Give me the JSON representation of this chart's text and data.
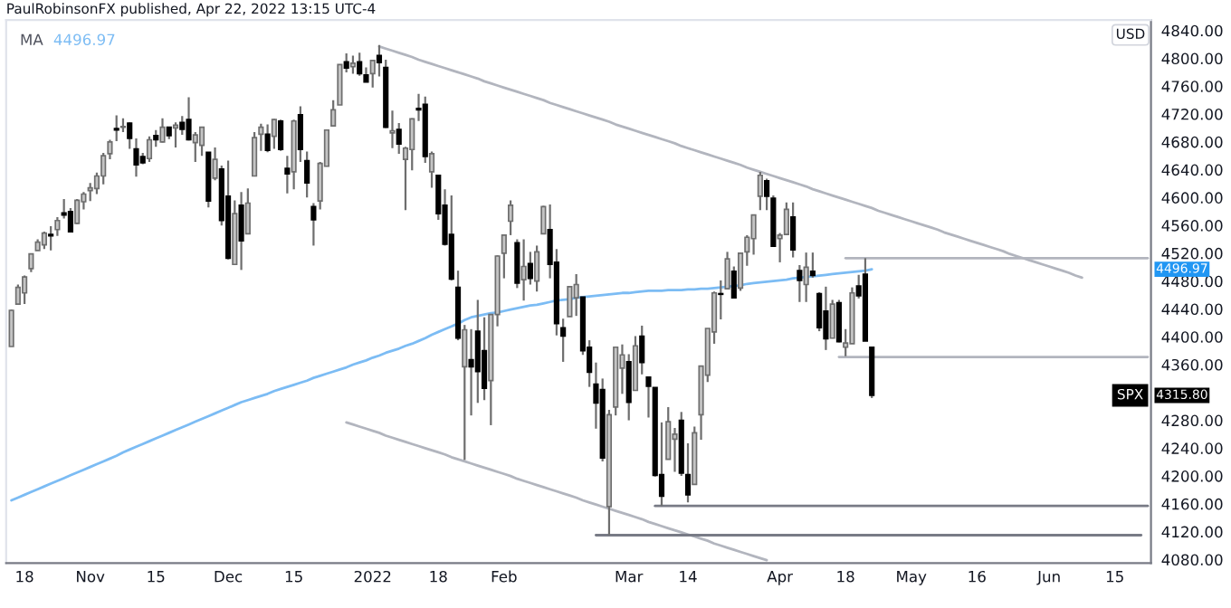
{
  "chart_data": {
    "type": "candlestick",
    "annotations": [
      "PaulRobinsonFX published, Apr 22, 2022 13:15 UTC-4",
      "4496.97",
      "USD",
      "4496.97",
      "SPX",
      "4315.80"
    ],
    "categories": [
      null,
      null,
      "18",
      null,
      null,
      null,
      null,
      null,
      null,
      null,
      null,
      null,
      "Nov",
      null,
      null,
      null,
      null,
      null,
      null,
      null,
      null,
      null,
      "15",
      null,
      null,
      null,
      null,
      null,
      null,
      null,
      null,
      null,
      null,
      "Dec",
      null,
      null,
      null,
      null,
      null,
      null,
      null,
      null,
      null,
      "15",
      null,
      null,
      null,
      null,
      null,
      null,
      null,
      null,
      null,
      null,
      null,
      "2022",
      null,
      null,
      null,
      null,
      null,
      null,
      null,
      null,
      null,
      "18",
      null,
      null,
      null,
      null,
      null,
      null,
      null,
      null,
      null,
      "Feb",
      null,
      null,
      null,
      null,
      null,
      null,
      null,
      null,
      null,
      null,
      null,
      null,
      null,
      null,
      null,
      null,
      null,
      null,
      "Mar",
      null,
      null,
      null,
      null,
      null,
      null,
      null,
      null,
      "14",
      null,
      null,
      null,
      null,
      null,
      null,
      null,
      null,
      null,
      null,
      null,
      null,
      null,
      "Apr",
      null,
      null,
      null,
      null,
      null,
      null,
      null,
      null,
      null,
      "18",
      null,
      null,
      null,
      null,
      null,
      null,
      null,
      null,
      null,
      "May",
      null,
      null,
      null,
      null,
      null,
      null,
      null,
      null,
      null,
      "16",
      null,
      null,
      null,
      null,
      null,
      null,
      null,
      null,
      null,
      null,
      "Jun",
      null,
      null,
      null,
      null,
      null,
      null,
      null,
      null,
      null,
      "15",
      null,
      null,
      null,
      null,
      null
    ],
    "ohlc": [
      [
        4386,
        4439,
        4386,
        4438
      ],
      [
        4447,
        4475,
        4447,
        4471
      ],
      [
        4463,
        4488,
        4447,
        4486
      ],
      [
        4498,
        4520,
        4493,
        4519
      ],
      [
        4524,
        4540,
        4524,
        4536
      ],
      [
        4532,
        4551,
        4526,
        4549
      ],
      [
        4547,
        4559,
        4524,
        4545
      ],
      [
        4554,
        4572,
        4545,
        4567
      ],
      [
        4578,
        4598,
        4570,
        4575
      ],
      [
        4580,
        4585,
        4551,
        4551
      ],
      [
        4563,
        4598,
        4562,
        4596
      ],
      [
        4594,
        4608,
        4583,
        4605
      ],
      [
        4610,
        4621,
        4595,
        4614
      ],
      [
        4613,
        4636,
        4605,
        4631
      ],
      [
        4631,
        4664,
        4619,
        4660
      ],
      [
        4663,
        4683,
        4655,
        4680
      ],
      [
        4699,
        4718,
        4681,
        4697
      ],
      [
        4701,
        4714,
        4694,
        4702
      ],
      [
        4707,
        4708,
        4670,
        4685
      ],
      [
        4670,
        4685,
        4630,
        4647
      ],
      [
        4659,
        4664,
        4648,
        4650
      ],
      [
        4656,
        4688,
        4651,
        4683
      ],
      [
        4689,
        4697,
        4673,
        4683
      ],
      [
        4680,
        4714,
        4679,
        4701
      ],
      [
        4701,
        4701,
        4684,
        4689
      ],
      [
        4700,
        4708,
        4672,
        4704
      ],
      [
        4708,
        4717,
        4690,
        4698
      ],
      [
        4712,
        4744,
        4682,
        4683
      ],
      [
        4679,
        4694,
        4651,
        4690
      ],
      [
        4675,
        4702,
        4660,
        4701
      ],
      [
        4665,
        4665,
        4586,
        4595
      ],
      [
        4628,
        4672,
        4625,
        4655
      ],
      [
        4641,
        4646,
        4560,
        4567
      ],
      [
        4602,
        4653,
        4511,
        4513
      ],
      [
        4504,
        4596,
        4504,
        4577
      ],
      [
        4589,
        4608,
        4496,
        4538
      ],
      [
        4548,
        4613,
        4548,
        4592
      ],
      [
        4631,
        4694,
        4631,
        4686
      ],
      [
        4691,
        4706,
        4667,
        4701
      ],
      [
        4691,
        4705,
        4665,
        4668
      ],
      [
        4688,
        4713,
        4670,
        4712
      ],
      [
        4710,
        4712,
        4667,
        4669
      ],
      [
        4642,
        4660,
        4606,
        4634
      ],
      [
        4637,
        4712,
        4612,
        4710
      ],
      [
        4719,
        4731,
        4651,
        4669
      ],
      [
        4653,
        4666,
        4600,
        4621
      ],
      [
        4587,
        4592,
        4531,
        4568
      ],
      [
        4595,
        4651,
        4583,
        4649
      ],
      [
        4645,
        4697,
        4645,
        4697
      ],
      [
        4703,
        4740,
        4703,
        4726
      ],
      [
        4733,
        4791,
        4733,
        4791
      ],
      [
        4795,
        4807,
        4780,
        4786
      ],
      [
        4788,
        4804,
        4778,
        4793
      ],
      [
        4795,
        4808,
        4775,
        4778
      ],
      [
        4776,
        4787,
        4766,
        4766
      ],
      [
        4778,
        4797,
        4758,
        4797
      ],
      [
        4804,
        4819,
        4774,
        4794
      ],
      [
        4787,
        4798,
        4700,
        4701
      ],
      [
        4693,
        4725,
        4671,
        4696
      ],
      [
        4698,
        4707,
        4663,
        4677
      ],
      [
        4655,
        4673,
        4582,
        4671
      ],
      [
        4669,
        4714,
        4639,
        4713
      ],
      [
        4728,
        4749,
        4710,
        4726
      ],
      [
        4734,
        4745,
        4650,
        4659
      ],
      [
        4637,
        4666,
        4614,
        4663
      ],
      [
        4632,
        4632,
        4568,
        4577
      ],
      [
        4589,
        4612,
        4531,
        4533
      ],
      [
        4547,
        4603,
        4481,
        4483
      ],
      [
        4471,
        4495,
        4395,
        4398
      ],
      [
        4357,
        4417,
        4223,
        4410
      ],
      [
        4367,
        4411,
        4287,
        4357
      ],
      [
        4408,
        4453,
        4305,
        4350
      ],
      [
        4380,
        4428,
        4309,
        4326
      ],
      [
        4337,
        4432,
        4273,
        4432
      ],
      [
        4432,
        4517,
        4415,
        4516
      ],
      [
        4520,
        4546,
        4484,
        4546
      ],
      [
        4566,
        4596,
        4546,
        4589
      ],
      [
        4535,
        4540,
        4470,
        4477
      ],
      [
        4482,
        4540,
        4452,
        4501
      ],
      [
        4505,
        4522,
        4475,
        4484
      ],
      [
        4480,
        4531,
        4465,
        4522
      ],
      [
        4548,
        4588,
        4548,
        4587
      ],
      [
        4554,
        4590,
        4484,
        4504
      ],
      [
        4507,
        4526,
        4402,
        4419
      ],
      [
        4413,
        4426,
        4364,
        4401
      ],
      [
        4429,
        4472,
        4429,
        4472
      ],
      [
        4456,
        4490,
        4430,
        4475
      ],
      [
        4457,
        4457,
        4374,
        4380
      ],
      [
        4385,
        4395,
        4328,
        4349
      ],
      [
        4332,
        4363,
        4268,
        4305
      ],
      [
        4324,
        4340,
        4221,
        4226
      ],
      [
        4156,
        4295,
        4115,
        4288
      ],
      [
        4299,
        4385,
        4287,
        4385
      ],
      [
        4355,
        4389,
        4318,
        4374
      ],
      [
        4364,
        4375,
        4280,
        4306
      ],
      [
        4323,
        4401,
        4323,
        4387
      ],
      [
        4401,
        4416,
        4346,
        4363
      ],
      [
        4342,
        4343,
        4284,
        4329
      ],
      [
        4327,
        4327,
        4199,
        4201
      ],
      [
        4202,
        4277,
        4157,
        4171
      ],
      [
        4224,
        4299,
        4224,
        4278
      ],
      [
        4253,
        4269,
        4206,
        4260
      ],
      [
        4280,
        4292,
        4200,
        4204
      ],
      [
        4202,
        4247,
        4162,
        4173
      ],
      [
        4188,
        4271,
        4187,
        4262
      ],
      [
        4288,
        4358,
        4252,
        4358
      ],
      [
        4345,
        4412,
        4335,
        4412
      ],
      [
        4407,
        4465,
        4390,
        4463
      ],
      [
        4462,
        4481,
        4425,
        4461
      ],
      [
        4469,
        4522,
        4469,
        4512
      ],
      [
        4494,
        4501,
        4455,
        4456
      ],
      [
        4470,
        4521,
        4466,
        4520
      ],
      [
        4522,
        4546,
        4502,
        4543
      ],
      [
        4541,
        4575,
        4518,
        4575
      ],
      [
        4602,
        4637,
        4582,
        4632
      ],
      [
        4624,
        4627,
        4582,
        4602
      ],
      [
        4599,
        4603,
        4530,
        4530
      ],
      [
        4541,
        4549,
        4507,
        4546
      ],
      [
        4547,
        4593,
        4546,
        4583
      ],
      [
        4572,
        4593,
        4514,
        4525
      ],
      [
        4495,
        4503,
        4450,
        4481
      ],
      [
        4475,
        4521,
        4450,
        4500
      ],
      [
        4494,
        4521,
        4485,
        4488
      ],
      [
        4462,
        4464,
        4408,
        4413
      ],
      [
        4437,
        4472,
        4381,
        4397
      ],
      [
        4398,
        4453,
        4398,
        4447
      ],
      [
        4449,
        4453,
        4392,
        4393
      ],
      [
        4385,
        4411,
        4372,
        4391
      ],
      [
        4390,
        4471,
        4390,
        4463
      ],
      [
        4473,
        4489,
        4455,
        4459
      ],
      [
        4490,
        4513,
        4394,
        4394
      ],
      [
        4385,
        4386,
        4312,
        4315.8
      ],
      null,
      null,
      null,
      null,
      null,
      null,
      null,
      null,
      null,
      null,
      null,
      null,
      null,
      null,
      null,
      null,
      null,
      null,
      null,
      null,
      null,
      null,
      null,
      null,
      null,
      null,
      null,
      null,
      null,
      null,
      null,
      null,
      null,
      null,
      null,
      null,
      null,
      null,
      null,
      null,
      null,
      null
    ],
    "series": [
      {
        "name": "MA",
        "type": "line",
        "color": "#7cbcf4",
        "values": [
          4165,
          4169,
          4173,
          4177,
          4181,
          4185,
          4189,
          4193,
          4197,
          4201,
          4205,
          4209,
          4213,
          4217,
          4221,
          4225,
          4229,
          4234,
          4238,
          4242,
          4246,
          4250,
          4254,
          4258,
          4262,
          4266,
          4270,
          4274,
          4278,
          4282,
          4286,
          4290,
          4294,
          4298,
          4302,
          4306,
          4309,
          4312,
          4315,
          4318,
          4322,
          4325,
          4328,
          4331,
          4334,
          4337,
          4341,
          4344,
          4347,
          4350,
          4353,
          4356,
          4360,
          4363,
          4366,
          4370,
          4373,
          4377,
          4380,
          4383,
          4387,
          4390,
          4394,
          4398,
          4403,
          4407,
          4411,
          4415,
          4419,
          4424,
          4428,
          4430,
          4432,
          4434,
          4435,
          4437,
          4439,
          4441,
          4443,
          4445,
          4446,
          4448,
          4450,
          4452,
          4453,
          4454,
          4456,
          4457,
          4458,
          4459,
          4460,
          4461,
          4462,
          4463,
          4463,
          4464,
          4465,
          4466,
          4466,
          4466,
          4467,
          4467,
          4467,
          4468,
          4468,
          4469,
          4469,
          4470,
          4471,
          4472,
          4473,
          4474,
          4476,
          4477,
          4478,
          4479,
          4480,
          4481,
          4482,
          4484,
          4485,
          4486,
          4487,
          4488,
          4489,
          4490,
          4491,
          4492,
          4493,
          4494,
          4495,
          4496.97,
          null,
          null,
          null,
          null,
          null,
          null,
          null,
          null,
          null,
          null,
          null,
          null,
          null,
          null,
          null,
          null,
          null,
          null,
          null,
          null,
          null,
          null,
          null,
          null,
          null,
          null,
          null,
          null,
          null,
          null,
          null,
          null,
          null,
          null,
          null,
          null,
          null,
          null,
          null,
          null,
          null,
          null
        ]
      },
      {
        "type": "line",
        "color": "#b2b5be",
        "values": [
          null,
          null,
          null,
          null,
          null,
          null,
          null,
          null,
          null,
          null,
          null,
          null,
          null,
          null,
          null,
          null,
          null,
          null,
          null,
          null,
          null,
          null,
          null,
          null,
          null,
          null,
          null,
          null,
          null,
          null,
          null,
          null,
          null,
          null,
          null,
          null,
          null,
          null,
          null,
          null,
          null,
          null,
          null,
          null,
          null,
          null,
          null,
          null,
          null,
          null,
          null,
          null,
          null,
          null,
          null,
          null,
          4817,
          4814,
          4811,
          4808,
          4805,
          4802,
          4798,
          4795,
          4792,
          4789,
          4786,
          4783,
          4780,
          4777,
          4774,
          4771,
          4767,
          4764,
          4761,
          4758,
          4755,
          4752,
          4749,
          4746,
          4743,
          4740,
          4736,
          4733,
          4730,
          4727,
          4724,
          4721,
          4718,
          4715,
          4712,
          4709,
          4705,
          4702,
          4699,
          4696,
          4693,
          4690,
          4687,
          4684,
          4681,
          4678,
          4674,
          4671,
          4668,
          4665,
          4662,
          4659,
          4656,
          4653,
          4650,
          4647,
          4643,
          4640,
          4637,
          4634,
          4631,
          4628,
          4625,
          4622,
          4619,
          4616,
          4612,
          4609,
          4606,
          4603,
          4600,
          4597,
          4594,
          4591,
          4588,
          4585,
          4581,
          4578,
          4575,
          4572,
          4569,
          4566,
          4563,
          4560,
          4557,
          4554,
          4550,
          4547,
          4544,
          4541,
          4538,
          4535,
          4532,
          4529,
          4526,
          4523,
          4519,
          4516,
          4513,
          4510,
          4507,
          4504,
          4501,
          4498,
          4495,
          4492,
          4488,
          4485,
          null,
          null,
          null,
          null,
          null,
          null,
          null,
          null,
          null,
          null
        ]
      },
      {
        "type": "line",
        "color": "#b2b5be",
        "values": [
          null,
          null,
          null,
          null,
          null,
          null,
          null,
          null,
          null,
          null,
          null,
          null,
          null,
          null,
          null,
          null,
          null,
          null,
          null,
          null,
          null,
          null,
          null,
          null,
          null,
          null,
          null,
          null,
          null,
          null,
          null,
          null,
          null,
          null,
          null,
          null,
          null,
          null,
          null,
          null,
          null,
          null,
          null,
          null,
          null,
          null,
          null,
          null,
          null,
          null,
          null,
          4277,
          4274,
          4271,
          4268,
          4265,
          4262,
          4258,
          4255,
          4252,
          4249,
          4246,
          4243,
          4240,
          4237,
          4234,
          4231,
          4227,
          4224,
          4221,
          4218,
          4215,
          4212,
          4209,
          4206,
          4203,
          4200,
          4196,
          4193,
          4190,
          4187,
          4184,
          4181,
          4178,
          4175,
          4172,
          4169,
          4165,
          4162,
          4159,
          4156,
          4153,
          4150,
          4147,
          4144,
          4141,
          4138,
          4134,
          4131,
          4128,
          4125,
          4122,
          4119,
          4116,
          4113,
          4110,
          4107,
          4103,
          4100,
          4097,
          4094,
          4091,
          4088,
          4085,
          4082,
          4079,
          null,
          null,
          null,
          null,
          null,
          null,
          null,
          null,
          null,
          null,
          null,
          null,
          null,
          null,
          null,
          null,
          null,
          null,
          null,
          null,
          null,
          null,
          null,
          null,
          null,
          null,
          null,
          null,
          null,
          null,
          null,
          null,
          null,
          null,
          null,
          null,
          null,
          null,
          null,
          null,
          null,
          null,
          null,
          null,
          null,
          null,
          null,
          null,
          null,
          null,
          null,
          null,
          null,
          null,
          null,
          null,
          null,
          null
        ]
      },
      {
        "type": "line",
        "color": "#b2b5be",
        "values": [
          null,
          null,
          null,
          null,
          null,
          null,
          null,
          null,
          null,
          null,
          null,
          null,
          null,
          null,
          null,
          null,
          null,
          null,
          null,
          null,
          null,
          null,
          null,
          null,
          null,
          null,
          null,
          null,
          null,
          null,
          null,
          null,
          null,
          null,
          null,
          null,
          null,
          null,
          null,
          null,
          null,
          null,
          null,
          null,
          null,
          null,
          null,
          null,
          null,
          null,
          null,
          null,
          null,
          null,
          null,
          null,
          null,
          null,
          null,
          null,
          null,
          null,
          null,
          null,
          null,
          null,
          null,
          null,
          null,
          null,
          null,
          null,
          null,
          null,
          null,
          null,
          null,
          null,
          null,
          null,
          null,
          null,
          null,
          null,
          null,
          null,
          null,
          null,
          null,
          null,
          null,
          null,
          null,
          null,
          null,
          null,
          null,
          null,
          null,
          null,
          null,
          null,
          null,
          null,
          null,
          null,
          null,
          null,
          null,
          null,
          null,
          null,
          null,
          null,
          null,
          null,
          null,
          null,
          null,
          null,
          null,
          null,
          null,
          null,
          null,
          null,
          null,
          4513,
          4513,
          4513,
          4513,
          4513,
          4513,
          4513,
          4513,
          4513,
          4513,
          4513,
          4513,
          4513,
          4513,
          4513,
          4513,
          4513,
          4513,
          4513,
          4513,
          4513,
          4513,
          4513,
          4513,
          4513,
          4513,
          4513,
          4513,
          4513,
          4513,
          4513,
          4513,
          4513,
          4513,
          4513,
          4513,
          4513,
          4513,
          4513,
          4513,
          4513,
          4513,
          4513,
          4513,
          4513,
          4513,
          4513
        ]
      },
      {
        "type": "line",
        "color": "#b2b5be",
        "values": [
          null,
          null,
          null,
          null,
          null,
          null,
          null,
          null,
          null,
          null,
          null,
          null,
          null,
          null,
          null,
          null,
          null,
          null,
          null,
          null,
          null,
          null,
          null,
          null,
          null,
          null,
          null,
          null,
          null,
          null,
          null,
          null,
          null,
          null,
          null,
          null,
          null,
          null,
          null,
          null,
          null,
          null,
          null,
          null,
          null,
          null,
          null,
          null,
          null,
          null,
          null,
          null,
          null,
          null,
          null,
          null,
          null,
          null,
          null,
          null,
          null,
          null,
          null,
          null,
          null,
          null,
          null,
          null,
          null,
          null,
          null,
          null,
          null,
          null,
          null,
          null,
          null,
          null,
          null,
          null,
          null,
          null,
          null,
          null,
          null,
          null,
          null,
          null,
          null,
          null,
          null,
          null,
          null,
          null,
          null,
          null,
          null,
          null,
          null,
          null,
          null,
          null,
          null,
          null,
          null,
          null,
          null,
          null,
          null,
          null,
          null,
          null,
          null,
          null,
          null,
          null,
          null,
          null,
          null,
          null,
          null,
          null,
          null,
          null,
          null,
          null,
          4371,
          4371,
          4371,
          4371,
          4371,
          4371,
          4371,
          4371,
          4371,
          4371,
          4371,
          4371,
          4371,
          4371,
          4371,
          4371,
          4371,
          4371,
          4371,
          4371,
          4371,
          4371,
          4371,
          4371,
          4371,
          4371,
          4371,
          4371,
          4371,
          4371,
          4371,
          4371,
          4371,
          4371,
          4371,
          4371,
          4371,
          4371,
          4371,
          4371,
          4371,
          4371,
          4371,
          4371,
          4371,
          4371,
          4371,
          4371
        ]
      },
      {
        "type": "line",
        "color": "#787b86",
        "values": [
          null,
          null,
          null,
          null,
          null,
          null,
          null,
          null,
          null,
          null,
          null,
          null,
          null,
          null,
          null,
          null,
          null,
          null,
          null,
          null,
          null,
          null,
          null,
          null,
          null,
          null,
          null,
          null,
          null,
          null,
          null,
          null,
          null,
          null,
          null,
          null,
          null,
          null,
          null,
          null,
          null,
          null,
          null,
          null,
          null,
          null,
          null,
          null,
          null,
          null,
          null,
          null,
          null,
          null,
          null,
          null,
          null,
          null,
          null,
          null,
          null,
          null,
          null,
          null,
          null,
          null,
          null,
          null,
          null,
          null,
          null,
          null,
          null,
          null,
          null,
          null,
          null,
          null,
          null,
          null,
          null,
          null,
          null,
          null,
          null,
          null,
          null,
          null,
          null,
          null,
          null,
          null,
          null,
          null,
          null,
          null,
          null,
          null,
          4157,
          4157,
          4157,
          4157,
          4157,
          4157,
          4157,
          4157,
          4157,
          4157,
          4157,
          4157,
          4157,
          4157,
          4157,
          4157,
          4157,
          4157,
          4157,
          4157,
          4157,
          4157,
          4157,
          4157,
          4157,
          4157,
          4157,
          4157,
          4157,
          4157,
          4157,
          4157,
          4157,
          4157,
          4157,
          4157,
          4157,
          4157,
          4157,
          4157,
          4157,
          4157,
          4157,
          4157,
          4157,
          4157,
          4157,
          4157,
          4157,
          4157,
          4157,
          4157,
          4157,
          4157,
          4157,
          4157,
          4157,
          4157,
          4157,
          4157,
          4157,
          4157,
          4157,
          4157,
          4157,
          4157,
          4157,
          4157,
          4157,
          4157,
          4157,
          4157,
          4157,
          4157,
          4157,
          4157
        ]
      },
      {
        "type": "line",
        "color": "#787b86",
        "values": [
          null,
          null,
          null,
          null,
          null,
          null,
          null,
          null,
          null,
          null,
          null,
          null,
          null,
          null,
          null,
          null,
          null,
          null,
          null,
          null,
          null,
          null,
          null,
          null,
          null,
          null,
          null,
          null,
          null,
          null,
          null,
          null,
          null,
          null,
          null,
          null,
          null,
          null,
          null,
          null,
          null,
          null,
          null,
          null,
          null,
          null,
          null,
          null,
          null,
          null,
          null,
          null,
          null,
          null,
          null,
          null,
          null,
          null,
          null,
          null,
          null,
          null,
          null,
          null,
          null,
          null,
          null,
          null,
          null,
          null,
          null,
          null,
          null,
          null,
          null,
          null,
          null,
          null,
          null,
          null,
          null,
          null,
          null,
          null,
          null,
          null,
          null,
          null,
          null,
          4115,
          4115,
          4115,
          4115,
          4115,
          4115,
          4115,
          4115,
          4115,
          4115,
          4115,
          4115,
          4115,
          4115,
          4115,
          4115,
          4115,
          4115,
          4115,
          4115,
          4115,
          4115,
          4115,
          4115,
          4115,
          4115,
          4115,
          4115,
          4115,
          4115,
          4115,
          4115,
          4115,
          4115,
          4115,
          4115,
          4115,
          4115,
          4115,
          4115,
          4115,
          4115,
          4115,
          4115,
          4115,
          4115,
          4115,
          4115,
          4115,
          4115,
          4115,
          4115,
          4115,
          4115,
          4115,
          4115,
          4115,
          4115,
          4115,
          4115,
          4115,
          4115,
          4115,
          4115,
          4115,
          4115,
          4115,
          4115,
          4115,
          4115,
          4115,
          4115,
          4115,
          4115,
          4115,
          4115,
          4115,
          4115,
          4115,
          4115,
          4115,
          4115,
          4115,
          4115,
          null
        ]
      }
    ],
    "ylim": [
      4075,
      4855
    ],
    "yticks": [
      {
        "value": 4080,
        "label": "4080.00"
      },
      {
        "value": 4120,
        "label": "4120.00"
      },
      {
        "value": 4160,
        "label": "4160.00"
      },
      {
        "value": 4200,
        "label": "4200.00"
      },
      {
        "value": 4240,
        "label": "4240.00"
      },
      {
        "value": 4280,
        "label": "4280.00"
      },
      {
        "value": 4360,
        "label": "4360.00"
      },
      {
        "value": 4400,
        "label": "4400.00"
      },
      {
        "value": 4440,
        "label": "4440.00"
      },
      {
        "value": 4480,
        "label": "4480.00"
      },
      {
        "value": 4520,
        "label": "4520.00"
      },
      {
        "value": 4560,
        "label": "4560.00"
      },
      {
        "value": 4600,
        "label": "4600.00"
      },
      {
        "value": 4640,
        "label": "4640.00"
      },
      {
        "value": 4680,
        "label": "4680.00"
      },
      {
        "value": 4720,
        "label": "4720.00"
      },
      {
        "value": 4760,
        "label": "4760.00"
      },
      {
        "value": 4800,
        "label": "4800.00"
      },
      {
        "value": 4840,
        "label": "4840.00"
      }
    ],
    "legend": "top left"
  }
}
